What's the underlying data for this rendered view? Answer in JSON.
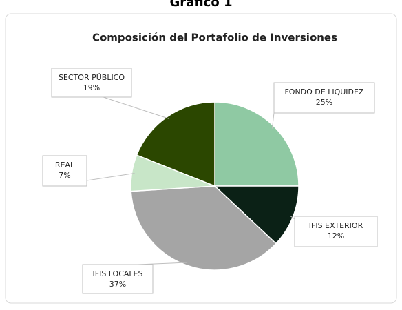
{
  "header": "Gráfico 1",
  "chart_data": {
    "type": "pie",
    "title": "Composición del Portafolio de Inversiones",
    "categories": [
      "FONDO DE LIQUIDEZ",
      "IFIS EXTERIOR",
      "IFIS LOCALES",
      "REAL",
      "SECTOR PÚBLICO"
    ],
    "values": [
      25,
      12,
      37,
      7,
      19
    ],
    "value_labels": [
      "25%",
      "12%",
      "37%",
      "7%",
      "19%"
    ],
    "colors": [
      "#8fc9a3",
      "#0b2116",
      "#a5a5a5",
      "#c8e6c8",
      "#2b4700"
    ]
  }
}
